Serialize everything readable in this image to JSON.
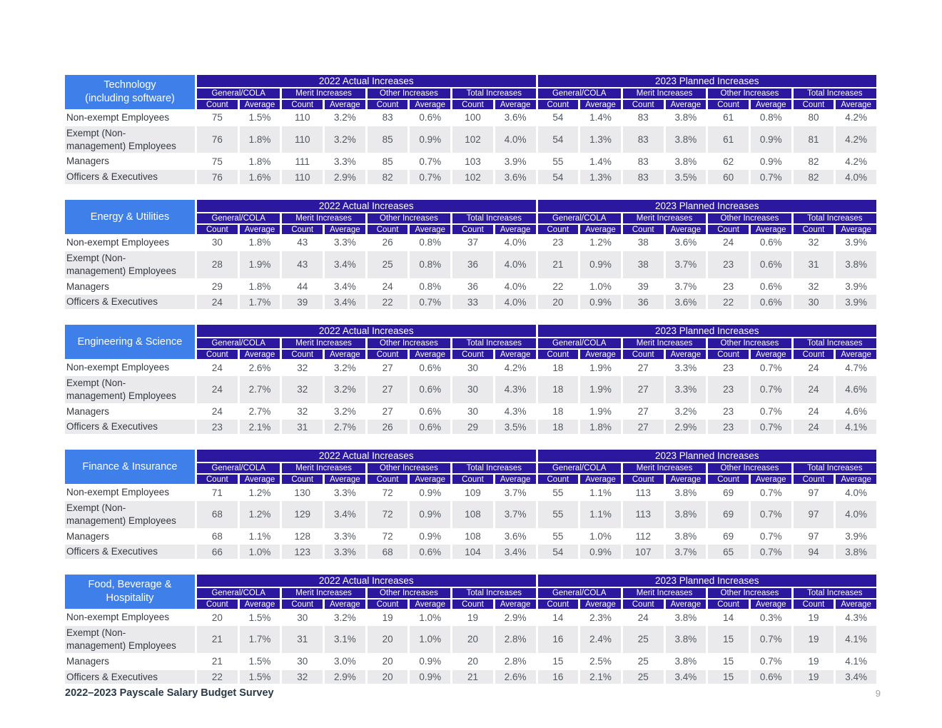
{
  "columns": {
    "year_groups": [
      "2022 Actual Increases",
      "2023 Planned Increases"
    ],
    "subgroups": [
      "General/COLA",
      "Merit Increases",
      "Other Increases",
      "Total Increases"
    ],
    "metrics": [
      "Count",
      "Average"
    ]
  },
  "tables": [
    {
      "industry": "Technology (including software)",
      "industry_lines": [
        "Technology",
        "(including software)"
      ],
      "rows": [
        {
          "label": "Non-exempt Employees",
          "label_lines": [
            "Non-exempt Employees"
          ],
          "values": [
            "75",
            "1.5%",
            "110",
            "3.2%",
            "83",
            "0.6%",
            "100",
            "3.6%",
            "54",
            "1.4%",
            "83",
            "3.8%",
            "61",
            "0.8%",
            "80",
            "4.2%"
          ]
        },
        {
          "label": "Exempt (Non-management) Employees",
          "label_lines": [
            "Exempt (Non-",
            "management) Employees"
          ],
          "values": [
            "76",
            "1.8%",
            "110",
            "3.2%",
            "85",
            "0.9%",
            "102",
            "4.0%",
            "54",
            "1.3%",
            "83",
            "3.8%",
            "61",
            "0.9%",
            "81",
            "4.2%"
          ]
        },
        {
          "label": "Managers",
          "label_lines": [
            "Managers"
          ],
          "values": [
            "75",
            "1.8%",
            "111",
            "3.3%",
            "85",
            "0.7%",
            "103",
            "3.9%",
            "55",
            "1.4%",
            "83",
            "3.8%",
            "62",
            "0.9%",
            "82",
            "4.2%"
          ]
        },
        {
          "label": "Officers & Executives",
          "label_lines": [
            "Officers & Executives"
          ],
          "values": [
            "76",
            "1.6%",
            "110",
            "2.9%",
            "82",
            "0.7%",
            "102",
            "3.6%",
            "54",
            "1.3%",
            "83",
            "3.5%",
            "60",
            "0.7%",
            "82",
            "4.0%"
          ]
        }
      ]
    },
    {
      "industry": "Energy & Utilities",
      "industry_lines": [
        "Energy & Utilities"
      ],
      "rows": [
        {
          "label": "Non-exempt Employees",
          "label_lines": [
            "Non-exempt Employees"
          ],
          "values": [
            "30",
            "1.8%",
            "43",
            "3.3%",
            "26",
            "0.8%",
            "37",
            "4.0%",
            "23",
            "1.2%",
            "38",
            "3.6%",
            "24",
            "0.6%",
            "32",
            "3.9%"
          ]
        },
        {
          "label": "Exempt (Non-management) Employees",
          "label_lines": [
            "Exempt (Non-",
            "management) Employees"
          ],
          "values": [
            "28",
            "1.9%",
            "43",
            "3.4%",
            "25",
            "0.8%",
            "36",
            "4.0%",
            "21",
            "0.9%",
            "38",
            "3.7%",
            "23",
            "0.6%",
            "31",
            "3.8%"
          ]
        },
        {
          "label": "Managers",
          "label_lines": [
            "Managers"
          ],
          "values": [
            "29",
            "1.8%",
            "44",
            "3.4%",
            "24",
            "0.8%",
            "36",
            "4.0%",
            "22",
            "1.0%",
            "39",
            "3.7%",
            "23",
            "0.6%",
            "32",
            "3.9%"
          ]
        },
        {
          "label": "Officers & Executives",
          "label_lines": [
            "Officers & Executives"
          ],
          "values": [
            "24",
            "1.7%",
            "39",
            "3.4%",
            "22",
            "0.7%",
            "33",
            "4.0%",
            "20",
            "0.9%",
            "36",
            "3.6%",
            "22",
            "0.6%",
            "30",
            "3.9%"
          ]
        }
      ]
    },
    {
      "industry": "Engineering & Science",
      "industry_lines": [
        "Engineering & Science"
      ],
      "rows": [
        {
          "label": "Non-exempt Employees",
          "label_lines": [
            "Non-exempt Employees"
          ],
          "values": [
            "24",
            "2.6%",
            "32",
            "3.2%",
            "27",
            "0.6%",
            "30",
            "4.2%",
            "18",
            "1.9%",
            "27",
            "3.3%",
            "23",
            "0.7%",
            "24",
            "4.7%"
          ]
        },
        {
          "label": "Exempt (Non-management) Employees",
          "label_lines": [
            "Exempt (Non-",
            "management) Employees"
          ],
          "values": [
            "24",
            "2.7%",
            "32",
            "3.2%",
            "27",
            "0.6%",
            "30",
            "4.3%",
            "18",
            "1.9%",
            "27",
            "3.3%",
            "23",
            "0.7%",
            "24",
            "4.6%"
          ]
        },
        {
          "label": "Managers",
          "label_lines": [
            "Managers"
          ],
          "values": [
            "24",
            "2.7%",
            "32",
            "3.2%",
            "27",
            "0.6%",
            "30",
            "4.3%",
            "18",
            "1.9%",
            "27",
            "3.2%",
            "23",
            "0.7%",
            "24",
            "4.6%"
          ]
        },
        {
          "label": "Officers & Executives",
          "label_lines": [
            "Officers & Executives"
          ],
          "values": [
            "23",
            "2.1%",
            "31",
            "2.7%",
            "26",
            "0.6%",
            "29",
            "3.5%",
            "18",
            "1.8%",
            "27",
            "2.9%",
            "23",
            "0.7%",
            "24",
            "4.1%"
          ]
        }
      ]
    },
    {
      "industry": "Finance & Insurance",
      "industry_lines": [
        "Finance & Insurance"
      ],
      "rows": [
        {
          "label": "Non-exempt Employees",
          "label_lines": [
            "Non-exempt Employees"
          ],
          "values": [
            "71",
            "1.2%",
            "130",
            "3.3%",
            "72",
            "0.9%",
            "109",
            "3.7%",
            "55",
            "1.1%",
            "113",
            "3.8%",
            "69",
            "0.7%",
            "97",
            "4.0%"
          ]
        },
        {
          "label": "Exempt (Non-management) Employees",
          "label_lines": [
            "Exempt (Non-",
            "management) Employees"
          ],
          "values": [
            "68",
            "1.2%",
            "129",
            "3.4%",
            "72",
            "0.9%",
            "108",
            "3.7%",
            "55",
            "1.1%",
            "113",
            "3.8%",
            "69",
            "0.7%",
            "97",
            "4.0%"
          ]
        },
        {
          "label": "Managers",
          "label_lines": [
            "Managers"
          ],
          "values": [
            "68",
            "1.1%",
            "128",
            "3.3%",
            "72",
            "0.9%",
            "108",
            "3.6%",
            "55",
            "1.0%",
            "112",
            "3.8%",
            "69",
            "0.7%",
            "97",
            "3.9%"
          ]
        },
        {
          "label": "Officers & Executives",
          "label_lines": [
            "Officers & Executives"
          ],
          "values": [
            "66",
            "1.0%",
            "123",
            "3.3%",
            "68",
            "0.6%",
            "104",
            "3.4%",
            "54",
            "0.9%",
            "107",
            "3.7%",
            "65",
            "0.7%",
            "94",
            "3.8%"
          ]
        }
      ]
    },
    {
      "industry": "Food, Beverage & Hospitality",
      "industry_lines": [
        "Food, Beverage &",
        "Hospitality"
      ],
      "rows": [
        {
          "label": "Non-exempt Employees",
          "label_lines": [
            "Non-exempt Employees"
          ],
          "values": [
            "20",
            "1.5%",
            "30",
            "3.2%",
            "19",
            "1.0%",
            "19",
            "2.9%",
            "14",
            "2.3%",
            "24",
            "3.8%",
            "14",
            "0.3%",
            "19",
            "4.3%"
          ]
        },
        {
          "label": "Exempt (Non-management) Employees",
          "label_lines": [
            "Exempt (Non-",
            "management) Employees"
          ],
          "values": [
            "21",
            "1.7%",
            "31",
            "3.1%",
            "20",
            "1.0%",
            "20",
            "2.8%",
            "16",
            "2.4%",
            "25",
            "3.8%",
            "15",
            "0.7%",
            "19",
            "4.1%"
          ]
        },
        {
          "label": "Managers",
          "label_lines": [
            "Managers"
          ],
          "values": [
            "21",
            "1.5%",
            "30",
            "3.0%",
            "20",
            "0.9%",
            "20",
            "2.8%",
            "15",
            "2.5%",
            "25",
            "3.8%",
            "15",
            "0.7%",
            "19",
            "4.1%"
          ]
        },
        {
          "label": "Officers & Executives",
          "label_lines": [
            "Officers & Executives"
          ],
          "values": [
            "22",
            "1.5%",
            "32",
            "2.9%",
            "20",
            "0.9%",
            "21",
            "2.6%",
            "16",
            "2.1%",
            "25",
            "3.4%",
            "15",
            "0.6%",
            "19",
            "3.4%"
          ]
        }
      ]
    }
  ],
  "footer": {
    "title": "2022–2023 Payscale Salary Budget Survey",
    "page_number": "9"
  },
  "colors": {
    "header_indigo": "#2B189F",
    "industry_blue": "#3E7FEA",
    "row_stripe_gray": "#EAEAEC",
    "data_text": "#4F575F",
    "label_text": "#33383E",
    "footer_text": "#2A3947",
    "page_number_text": "#999FA6"
  }
}
